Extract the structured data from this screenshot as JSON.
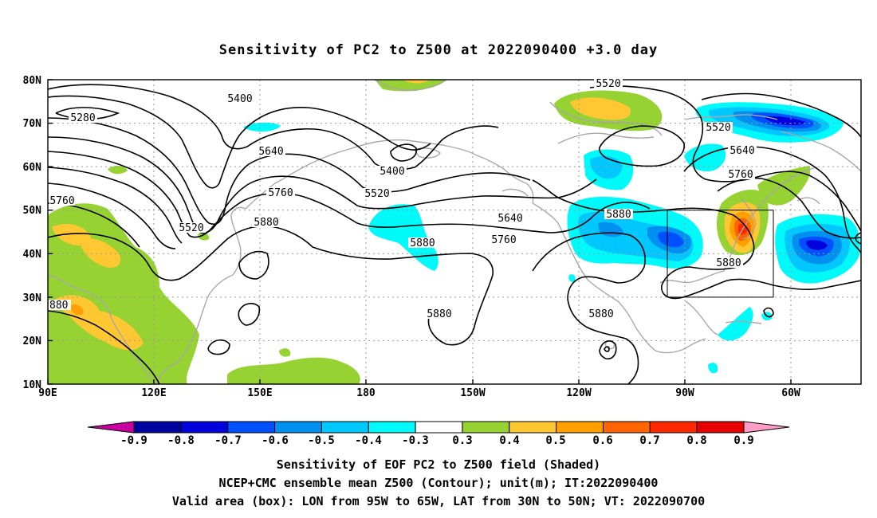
{
  "title": "Sensitivity of PC2 to Z500 at 2022090400 +3.0 day",
  "map": {
    "type": "shaded sensitivity map with geopotential height contours",
    "lon_range": [
      "90E",
      "300E (60W) + ~15deg"
    ],
    "lat_range": [
      10,
      80
    ],
    "x_ticks": [
      "90E",
      "120E",
      "150E",
      "180",
      "150W",
      "120W",
      "90W",
      "60W"
    ],
    "y_ticks": [
      "80N",
      "70N",
      "60N",
      "50N",
      "40N",
      "30N",
      "20N",
      "10N"
    ],
    "grid": "dotted",
    "valid_box": {
      "lon_from": "95W",
      "lon_to": "65W",
      "lat_from": "30N",
      "lat_to": "50N"
    }
  },
  "contour_labels": [
    "5280",
    "5400",
    "5400",
    "5520",
    "5520",
    "5520",
    "5520",
    "5640",
    "5640",
    "5640",
    "5760",
    "5760",
    "5760",
    "5760",
    "5880",
    "5880",
    "5880",
    "5880",
    "5880",
    "5880"
  ],
  "colorbar": {
    "tick_labels": [
      "-0.9",
      "-0.8",
      "-0.7",
      "-0.6",
      "-0.5",
      "-0.4",
      "-0.3",
      "0.3",
      "0.4",
      "0.5",
      "0.6",
      "0.7",
      "0.8",
      "0.9"
    ],
    "colors": [
      "#c800a0",
      "#0000a0",
      "#0000dc",
      "#0050ff",
      "#0090f0",
      "#00c8ff",
      "#00fafa",
      "#ffffff",
      "#96d232",
      "#ffc832",
      "#ffa000",
      "#ff6400",
      "#ff2800",
      "#e60000",
      "#ff9ec8"
    ]
  },
  "captions": [
    "Sensitivity of EOF PC2 to Z500 field (Shaded)",
    "NCEP+CMC ensemble mean Z500 (Contour); unit(m); IT:2022090400",
    "Valid area (box): LON from 95W to 65W, LAT from 30N to 50N; VT: 2022090700"
  ]
}
